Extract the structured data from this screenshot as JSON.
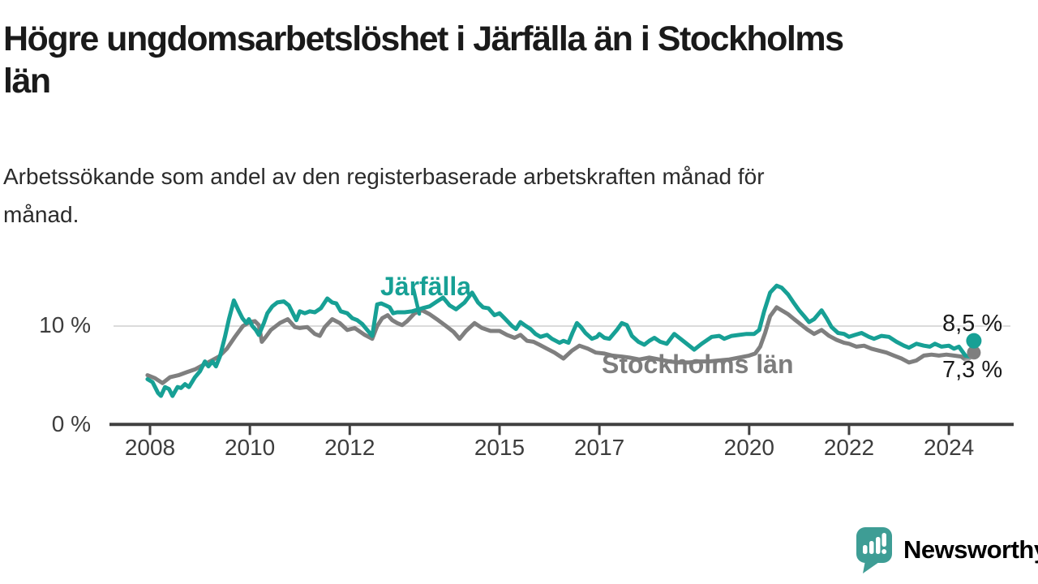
{
  "header": {
    "title_lines": [
      "Högre ungdomsarbetslöshet i Järfälla än i Stockholms",
      "län"
    ],
    "subtitle_lines": [
      "Arbetssökande som andel av den registerbaserade arbetskraften månad för",
      "månad."
    ]
  },
  "branding": {
    "logo_text": "Newsworthy",
    "logo_icon": "speech-bubble-bar-chart-icon",
    "logo_color": "#3E9D95"
  },
  "chart_data": {
    "type": "line",
    "title": "Högre ungdomsarbetslöshet i Järfälla än i Stockholms län",
    "subtitle": "Arbetssökande som andel av den registerbaserade arbetskraften månad för månad.",
    "unit": "percent",
    "x_range": [
      2007.9,
      2024.6
    ],
    "ylim": [
      0,
      15.5
    ],
    "grid": "horizontal-at-10-only",
    "legend_position": "inline-labels-on-lines",
    "colors": {
      "jarfalla": "#17A095",
      "stockholm": "#7F7F7F",
      "axis": "#404040",
      "gridline": "#DBDBDB"
    },
    "x_ticks": [
      {
        "year": 2008,
        "label": "2008"
      },
      {
        "year": 2010,
        "label": "2010"
      },
      {
        "year": 2012,
        "label": "2012"
      },
      {
        "year": 2015,
        "label": "2015"
      },
      {
        "year": 2017,
        "label": "2017"
      },
      {
        "year": 2020,
        "label": "2020"
      },
      {
        "year": 2022,
        "label": "2022"
      },
      {
        "year": 2024,
        "label": "2024"
      }
    ],
    "y_ticks": [
      {
        "value": 10,
        "label": "10 %"
      },
      {
        "value": 0,
        "label": "0 %"
      }
    ],
    "series": [
      {
        "name": "Stockholms län",
        "color": "#7F7F7F",
        "end_value": 7.3,
        "end_label": "7,3 %",
        "points": [
          [
            2007.95,
            5.0
          ],
          [
            2008.1,
            4.7
          ],
          [
            2008.25,
            4.2
          ],
          [
            2008.4,
            4.8
          ],
          [
            2008.57,
            5.0
          ],
          [
            2008.73,
            5.3
          ],
          [
            2008.9,
            5.6
          ],
          [
            2009.05,
            6.0
          ],
          [
            2009.2,
            6.4
          ],
          [
            2009.38,
            6.9
          ],
          [
            2009.54,
            7.7
          ],
          [
            2009.7,
            8.9
          ],
          [
            2009.86,
            10.0
          ],
          [
            2010.0,
            10.4
          ],
          [
            2010.1,
            10.5
          ],
          [
            2010.18,
            10.1
          ],
          [
            2010.24,
            8.4
          ],
          [
            2010.32,
            8.9
          ],
          [
            2010.42,
            9.6
          ],
          [
            2010.6,
            10.3
          ],
          [
            2010.76,
            10.7
          ],
          [
            2010.9,
            9.9
          ],
          [
            2011.0,
            9.8
          ],
          [
            2011.15,
            9.9
          ],
          [
            2011.3,
            9.2
          ],
          [
            2011.4,
            9.0
          ],
          [
            2011.5,
            9.9
          ],
          [
            2011.65,
            10.7
          ],
          [
            2011.8,
            10.3
          ],
          [
            2011.95,
            9.6
          ],
          [
            2012.1,
            9.8
          ],
          [
            2012.3,
            9.1
          ],
          [
            2012.45,
            8.7
          ],
          [
            2012.55,
            10.0
          ],
          [
            2012.65,
            10.8
          ],
          [
            2012.76,
            11.1
          ],
          [
            2012.85,
            10.6
          ],
          [
            2012.95,
            10.3
          ],
          [
            2013.05,
            10.1
          ],
          [
            2013.15,
            10.5
          ],
          [
            2013.3,
            11.3
          ],
          [
            2013.45,
            11.6
          ],
          [
            2013.6,
            11.2
          ],
          [
            2013.77,
            10.6
          ],
          [
            2013.93,
            10.0
          ],
          [
            2014.08,
            9.4
          ],
          [
            2014.2,
            8.7
          ],
          [
            2014.33,
            9.5
          ],
          [
            2014.5,
            10.3
          ],
          [
            2014.65,
            9.8
          ],
          [
            2014.82,
            9.5
          ],
          [
            2015.0,
            9.5
          ],
          [
            2015.15,
            9.1
          ],
          [
            2015.3,
            8.8
          ],
          [
            2015.42,
            9.1
          ],
          [
            2015.55,
            8.5
          ],
          [
            2015.68,
            8.4
          ],
          [
            2015.8,
            8.1
          ],
          [
            2015.95,
            7.7
          ],
          [
            2016.1,
            7.3
          ],
          [
            2016.28,
            6.7
          ],
          [
            2016.45,
            7.5
          ],
          [
            2016.6,
            8.0
          ],
          [
            2016.77,
            7.7
          ],
          [
            2016.93,
            7.3
          ],
          [
            2017.1,
            7.2
          ],
          [
            2017.26,
            7.0
          ],
          [
            2017.45,
            6.9
          ],
          [
            2017.6,
            6.8
          ],
          [
            2017.8,
            6.6
          ],
          [
            2018.0,
            6.8
          ],
          [
            2018.2,
            6.6
          ],
          [
            2018.4,
            6.4
          ],
          [
            2018.6,
            6.3
          ],
          [
            2018.8,
            6.3
          ],
          [
            2019.0,
            6.4
          ],
          [
            2019.2,
            6.4
          ],
          [
            2019.4,
            6.5
          ],
          [
            2019.6,
            6.6
          ],
          [
            2019.8,
            6.8
          ],
          [
            2020.0,
            7.0
          ],
          [
            2020.12,
            7.2
          ],
          [
            2020.22,
            7.9
          ],
          [
            2020.32,
            9.3
          ],
          [
            2020.42,
            11.0
          ],
          [
            2020.55,
            11.9
          ],
          [
            2020.65,
            11.6
          ],
          [
            2020.78,
            11.2
          ],
          [
            2020.9,
            10.7
          ],
          [
            2021.0,
            10.3
          ],
          [
            2021.15,
            9.7
          ],
          [
            2021.3,
            9.2
          ],
          [
            2021.45,
            9.6
          ],
          [
            2021.6,
            9.0
          ],
          [
            2021.75,
            8.6
          ],
          [
            2021.9,
            8.3
          ],
          [
            2022.0,
            8.2
          ],
          [
            2022.15,
            7.9
          ],
          [
            2022.3,
            8.0
          ],
          [
            2022.45,
            7.7
          ],
          [
            2022.6,
            7.5
          ],
          [
            2022.75,
            7.3
          ],
          [
            2022.9,
            7.0
          ],
          [
            2023.05,
            6.7
          ],
          [
            2023.2,
            6.3
          ],
          [
            2023.35,
            6.5
          ],
          [
            2023.5,
            7.0
          ],
          [
            2023.65,
            7.1
          ],
          [
            2023.8,
            7.0
          ],
          [
            2023.95,
            7.1
          ],
          [
            2024.1,
            7.0
          ],
          [
            2024.25,
            6.9
          ],
          [
            2024.35,
            6.5
          ],
          [
            2024.45,
            6.9
          ],
          [
            2024.5,
            7.3
          ]
        ]
      },
      {
        "name": "Järfälla",
        "color": "#17A095",
        "end_value": 8.5,
        "end_label": "8,5 %",
        "points": [
          [
            2007.95,
            4.6
          ],
          [
            2008.05,
            4.3
          ],
          [
            2008.16,
            3.2
          ],
          [
            2008.22,
            2.9
          ],
          [
            2008.3,
            3.8
          ],
          [
            2008.38,
            3.6
          ],
          [
            2008.45,
            2.9
          ],
          [
            2008.55,
            3.8
          ],
          [
            2008.62,
            3.7
          ],
          [
            2008.7,
            4.1
          ],
          [
            2008.78,
            3.8
          ],
          [
            2008.9,
            4.8
          ],
          [
            2009.0,
            5.4
          ],
          [
            2009.1,
            6.4
          ],
          [
            2009.17,
            5.9
          ],
          [
            2009.25,
            6.4
          ],
          [
            2009.32,
            5.9
          ],
          [
            2009.4,
            6.9
          ],
          [
            2009.5,
            8.9
          ],
          [
            2009.58,
            10.7
          ],
          [
            2009.68,
            12.6
          ],
          [
            2009.78,
            11.5
          ],
          [
            2009.85,
            10.8
          ],
          [
            2009.93,
            10.3
          ],
          [
            2009.98,
            10.7
          ],
          [
            2010.05,
            10.0
          ],
          [
            2010.12,
            9.6
          ],
          [
            2010.18,
            9.1
          ],
          [
            2010.28,
            10.3
          ],
          [
            2010.35,
            11.3
          ],
          [
            2010.45,
            12.0
          ],
          [
            2010.55,
            12.4
          ],
          [
            2010.68,
            12.5
          ],
          [
            2010.78,
            12.1
          ],
          [
            2010.85,
            11.4
          ],
          [
            2010.93,
            10.6
          ],
          [
            2011.0,
            11.5
          ],
          [
            2011.1,
            11.3
          ],
          [
            2011.2,
            11.5
          ],
          [
            2011.3,
            11.4
          ],
          [
            2011.42,
            11.8
          ],
          [
            2011.55,
            12.8
          ],
          [
            2011.65,
            12.4
          ],
          [
            2011.73,
            12.3
          ],
          [
            2011.82,
            11.5
          ],
          [
            2011.95,
            11.3
          ],
          [
            2012.05,
            10.8
          ],
          [
            2012.15,
            10.6
          ],
          [
            2012.25,
            10.2
          ],
          [
            2012.35,
            9.6
          ],
          [
            2012.45,
            9.0
          ],
          [
            2012.55,
            12.2
          ],
          [
            2012.63,
            12.3
          ],
          [
            2012.72,
            12.1
          ],
          [
            2012.8,
            11.9
          ],
          [
            2012.87,
            11.3
          ],
          [
            2012.95,
            11.4
          ],
          [
            2013.1,
            11.4
          ],
          [
            2013.25,
            11.5
          ],
          [
            2013.45,
            11.8
          ],
          [
            2013.6,
            12.0
          ],
          [
            2013.75,
            12.5
          ],
          [
            2013.87,
            12.9
          ],
          [
            2014.0,
            12.1
          ],
          [
            2014.13,
            11.7
          ],
          [
            2014.3,
            12.4
          ],
          [
            2014.45,
            13.4
          ],
          [
            2014.57,
            12.4
          ],
          [
            2014.67,
            11.9
          ],
          [
            2014.78,
            11.8
          ],
          [
            2014.9,
            11.1
          ],
          [
            2015.0,
            11.3
          ],
          [
            2015.1,
            10.8
          ],
          [
            2015.25,
            10.0
          ],
          [
            2015.33,
            9.7
          ],
          [
            2015.42,
            10.4
          ],
          [
            2015.5,
            10.1
          ],
          [
            2015.62,
            9.7
          ],
          [
            2015.72,
            9.2
          ],
          [
            2015.82,
            8.9
          ],
          [
            2015.95,
            9.1
          ],
          [
            2016.05,
            8.7
          ],
          [
            2016.2,
            8.3
          ],
          [
            2016.28,
            8.5
          ],
          [
            2016.38,
            8.3
          ],
          [
            2016.46,
            9.3
          ],
          [
            2016.55,
            10.3
          ],
          [
            2016.63,
            9.9
          ],
          [
            2016.72,
            9.3
          ],
          [
            2016.85,
            8.7
          ],
          [
            2016.95,
            8.9
          ],
          [
            2017.0,
            9.2
          ],
          [
            2017.1,
            8.8
          ],
          [
            2017.2,
            8.7
          ],
          [
            2017.35,
            9.6
          ],
          [
            2017.45,
            10.3
          ],
          [
            2017.55,
            10.1
          ],
          [
            2017.65,
            9.0
          ],
          [
            2017.78,
            8.4
          ],
          [
            2017.9,
            8.1
          ],
          [
            2018.0,
            8.5
          ],
          [
            2018.1,
            8.8
          ],
          [
            2018.22,
            8.4
          ],
          [
            2018.35,
            8.2
          ],
          [
            2018.5,
            9.2
          ],
          [
            2018.7,
            8.4
          ],
          [
            2018.9,
            7.6
          ],
          [
            2019.05,
            8.2
          ],
          [
            2019.25,
            8.9
          ],
          [
            2019.4,
            9.0
          ],
          [
            2019.5,
            8.7
          ],
          [
            2019.65,
            9.0
          ],
          [
            2019.8,
            9.1
          ],
          [
            2019.95,
            9.2
          ],
          [
            2020.1,
            9.2
          ],
          [
            2020.2,
            9.6
          ],
          [
            2020.3,
            11.5
          ],
          [
            2020.42,
            13.4
          ],
          [
            2020.55,
            14.1
          ],
          [
            2020.65,
            13.9
          ],
          [
            2020.78,
            13.2
          ],
          [
            2020.9,
            12.3
          ],
          [
            2021.0,
            11.6
          ],
          [
            2021.1,
            11.0
          ],
          [
            2021.2,
            10.4
          ],
          [
            2021.3,
            10.7
          ],
          [
            2021.45,
            11.6
          ],
          [
            2021.55,
            10.8
          ],
          [
            2021.65,
            9.9
          ],
          [
            2021.78,
            9.3
          ],
          [
            2021.9,
            9.2
          ],
          [
            2022.0,
            8.9
          ],
          [
            2022.12,
            9.1
          ],
          [
            2022.25,
            9.3
          ],
          [
            2022.4,
            8.9
          ],
          [
            2022.5,
            8.7
          ],
          [
            2022.65,
            9.0
          ],
          [
            2022.8,
            8.9
          ],
          [
            2022.95,
            8.4
          ],
          [
            2023.1,
            8.0
          ],
          [
            2023.2,
            7.8
          ],
          [
            2023.35,
            8.2
          ],
          [
            2023.5,
            8.0
          ],
          [
            2023.62,
            7.9
          ],
          [
            2023.72,
            8.2
          ],
          [
            2023.85,
            7.9
          ],
          [
            2024.0,
            8.0
          ],
          [
            2024.1,
            7.7
          ],
          [
            2024.2,
            7.9
          ],
          [
            2024.33,
            7.0
          ],
          [
            2024.4,
            6.9
          ],
          [
            2024.5,
            8.5
          ]
        ]
      }
    ]
  }
}
